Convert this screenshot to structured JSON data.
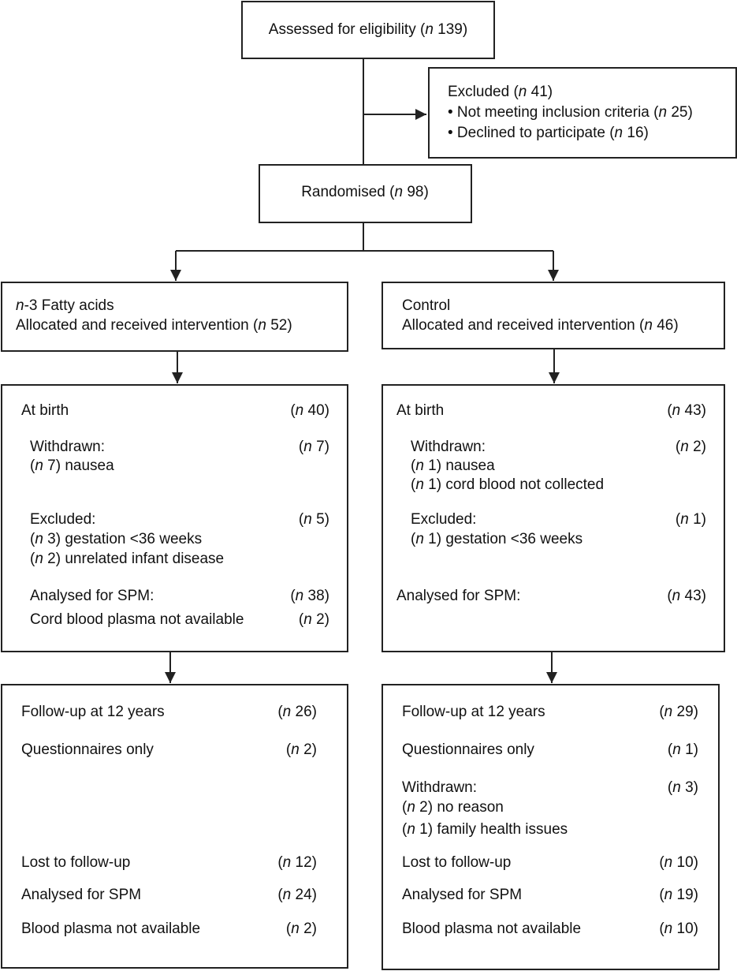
{
  "assessed": "Assessed for eligibility (n 139)",
  "excluded": {
    "title": "Excluded (n 41)",
    "items": [
      "Not meeting inclusion criteria (n 25)",
      "Declined to participate (n 16)"
    ]
  },
  "randomised": "Randomised (n 98)",
  "arms": [
    {
      "allocation": {
        "title": "n-3 Fatty acids",
        "text": "Allocated and received intervention (n 52)"
      },
      "birth": [
        {
          "label": "At birth",
          "count": "(n 40)",
          "sub": []
        },
        {
          "label": "Withdrawn:",
          "count": "(n 7)",
          "sub": [
            "(n 7) nausea"
          ]
        },
        {
          "label": "Excluded:",
          "count": "(n 5)",
          "sub": [
            "(n 3) gestation <36 weeks",
            "(n 2) unrelated infant disease"
          ]
        },
        {
          "label": "Analysed for SPM:",
          "count": "(n 38)",
          "sub": []
        },
        {
          "label": "Cord blood plasma not available",
          "count": "(n 2)",
          "sub": []
        }
      ],
      "followup": [
        {
          "label": "Follow-up at 12 years",
          "count": "(n 26)",
          "sub": []
        },
        {
          "label": "Questionnaires only",
          "count": "(n 2)",
          "sub": []
        },
        {
          "label": "Lost to follow-up",
          "count": "(n 12)",
          "sub": []
        },
        {
          "label": "Analysed for SPM",
          "count": "(n 24)",
          "sub": []
        },
        {
          "label": "Blood plasma not available",
          "count": "(n 2)",
          "sub": []
        }
      ]
    },
    {
      "allocation": {
        "title": "Control",
        "text": "Allocated and received intervention (n 46)"
      },
      "birth": [
        {
          "label": "At birth",
          "count": "(n 43)",
          "sub": []
        },
        {
          "label": "Withdrawn:",
          "count": "(n 2)",
          "sub": [
            "(n 1) nausea",
            "(n 1) cord blood not collected"
          ]
        },
        {
          "label": "Excluded:",
          "count": "(n 1)",
          "sub": [
            "(n 1) gestation <36 weeks"
          ]
        },
        {
          "label": "Analysed for SPM:",
          "count": "(n 43)",
          "sub": []
        }
      ],
      "followup": [
        {
          "label": "Follow-up at 12 years",
          "count": "(n 29)",
          "sub": []
        },
        {
          "label": "Questionnaires only",
          "count": "(n 1)",
          "sub": []
        },
        {
          "label": "Withdrawn:",
          "count": "(n 3)",
          "sub": [
            "(n 2) no reason",
            "(n 1) family health issues"
          ]
        },
        {
          "label": "Lost to follow-up",
          "count": "(n 10)",
          "sub": []
        },
        {
          "label": "Analysed for SPM",
          "count": "(n 19)",
          "sub": []
        },
        {
          "label": "Blood plasma not available",
          "count": "(n 10)",
          "sub": []
        }
      ]
    }
  ]
}
